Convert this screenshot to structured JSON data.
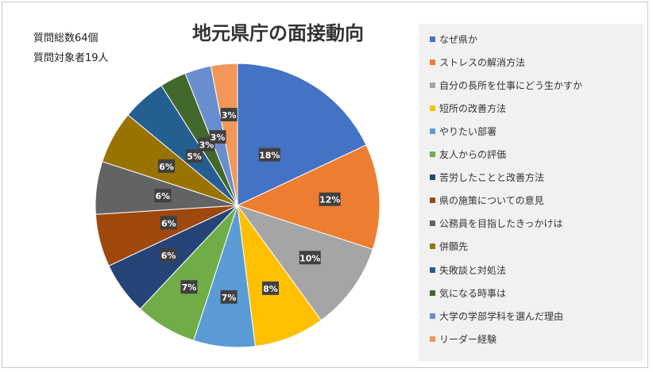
{
  "chart_data": {
    "type": "pie",
    "title": "地元県庁の面接動向",
    "notes": [
      "質問総数64個",
      "質問対象者19人"
    ],
    "slices": [
      {
        "label": "なぜ県か",
        "value": 18,
        "display": "18%",
        "color": "#4472c4"
      },
      {
        "label": "ストレスの解消方法",
        "value": 12,
        "display": "12%",
        "color": "#ed7d31"
      },
      {
        "label": "自分の長所を仕事にどう生かすか",
        "value": 10,
        "display": "10%",
        "color": "#a5a5a5"
      },
      {
        "label": "短所の改善方法",
        "value": 8,
        "display": "8%",
        "color": "#ffc000"
      },
      {
        "label": "やりたい部署",
        "value": 7,
        "display": "7%",
        "color": "#5b9bd5"
      },
      {
        "label": "友人からの評価",
        "value": 7,
        "display": "7%",
        "color": "#70ad47"
      },
      {
        "label": "苦労したことと改善方法",
        "value": 6,
        "display": "6%",
        "color": "#264478"
      },
      {
        "label": "県の施策についての意見",
        "value": 6,
        "display": "6%",
        "color": "#9e480e"
      },
      {
        "label": "公務員を目指したきっかけは",
        "value": 6,
        "display": "6%",
        "color": "#636363"
      },
      {
        "label": "併願先",
        "value": 6,
        "display": "6%",
        "color": "#997300"
      },
      {
        "label": "失敗談と対処法",
        "value": 5,
        "display": "5%",
        "color": "#255e91"
      },
      {
        "label": "気になる時事は",
        "value": 3,
        "display": "3%",
        "color": "#43682b"
      },
      {
        "label": "大学の学部学科を選んだ理由",
        "value": 3,
        "display": "3%",
        "color": "#698ed0"
      },
      {
        "label": "リーダー経験",
        "value": 3,
        "display": "3%",
        "color": "#f1975a"
      }
    ],
    "legend_position": "right"
  }
}
